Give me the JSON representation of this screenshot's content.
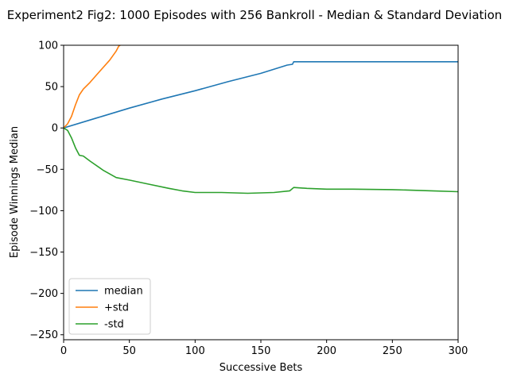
{
  "chart_data": {
    "type": "line",
    "title": "Experiment2 Fig2: 1000 Episodes with 256 Bankroll - Median & Standard Deviation",
    "xlabel": "Successive Bets",
    "ylabel": "Episode Winnings Median",
    "xlim": [
      0,
      300
    ],
    "ylim": [
      -256,
      100
    ],
    "xticks": [
      0,
      50,
      100,
      150,
      200,
      250,
      300
    ],
    "yticks": [
      100,
      50,
      0,
      -50,
      -100,
      -150,
      -200,
      -250
    ],
    "grid": false,
    "legend_position": "lower-left",
    "series": [
      {
        "name": "median",
        "color": "#1f77b4",
        "x": [
          0,
          25,
          50,
          75,
          100,
          125,
          150,
          170,
          174,
          175,
          200,
          250,
          300
        ],
        "y": [
          0,
          12,
          24,
          35,
          45,
          56,
          66,
          76,
          77,
          80,
          80,
          80,
          80
        ]
      },
      {
        "name": "+std",
        "color": "#ff7f0e",
        "x": [
          0,
          3,
          6,
          9,
          12,
          15,
          20,
          25,
          30,
          35,
          40,
          42,
          43
        ],
        "y": [
          0,
          5,
          14,
          28,
          40,
          47,
          55,
          64,
          73,
          82,
          93,
          99,
          100
        ]
      },
      {
        "name": "-std",
        "color": "#2ca02c",
        "x": [
          0,
          3,
          6,
          9,
          12,
          15,
          20,
          30,
          40,
          50,
          65,
          80,
          90,
          100,
          120,
          140,
          160,
          172,
          175,
          185,
          200,
          220,
          250,
          280,
          300
        ],
        "y": [
          0,
          -3,
          -12,
          -24,
          -33,
          -34,
          -40,
          -51,
          -60,
          -63,
          -68,
          -73,
          -76,
          -78,
          -78,
          -79,
          -78,
          -76,
          -72,
          -73,
          -74,
          -74,
          -74.5,
          -76,
          -77
        ]
      }
    ]
  }
}
